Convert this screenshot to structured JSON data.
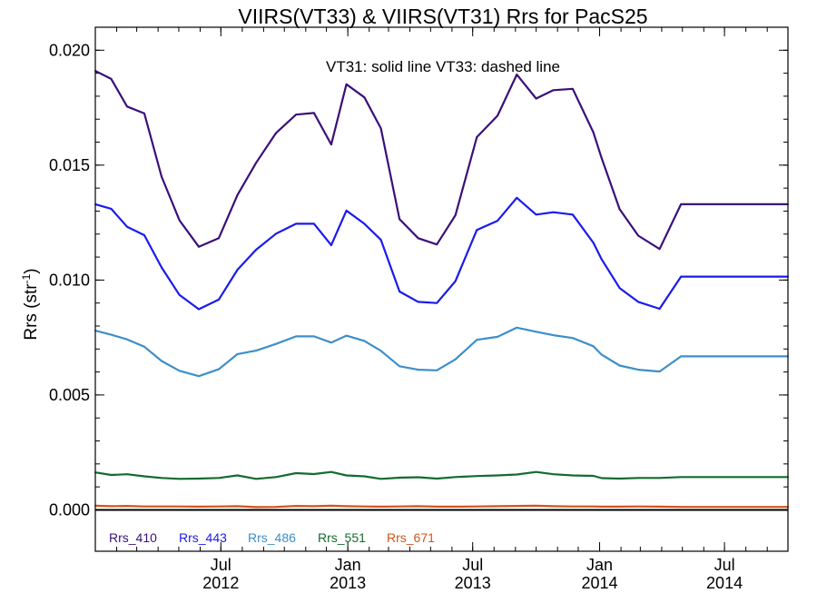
{
  "chart_data": {
    "type": "line",
    "title": "VIIRS(VT33) & VIIRS(VT31)  Rrs for PacS25",
    "annotation": "VT31: solid line   VT33: dashed line",
    "ylabel": "Rrs (str",
    "ylabel_sup": "-1",
    "ylabel_end": ")",
    "ylim": [
      -0.0018,
      0.021
    ],
    "xlim": [
      "2012-01-01",
      "2014-10-01"
    ],
    "yticks": [
      {
        "value": 0.0,
        "label": "0.000"
      },
      {
        "value": 0.005,
        "label": "0.005"
      },
      {
        "value": 0.01,
        "label": "0.010"
      },
      {
        "value": 0.015,
        "label": "0.015"
      },
      {
        "value": 0.02,
        "label": "0.020"
      }
    ],
    "xticks": [
      {
        "date": "2012-07-01",
        "label1": "Jul",
        "label2": "2012"
      },
      {
        "date": "2013-01-01",
        "label1": "Jan",
        "label2": "2013"
      },
      {
        "date": "2013-07-01",
        "label1": "Jul",
        "label2": "2013"
      },
      {
        "date": "2014-01-01",
        "label1": "Jan",
        "label2": "2014"
      },
      {
        "date": "2014-07-01",
        "label1": "Jul",
        "label2": "2014"
      }
    ],
    "x": [
      "2012-01-01",
      "2012-01-24",
      "2012-02-16",
      "2012-03-12",
      "2012-04-06",
      "2012-05-02",
      "2012-05-30",
      "2012-06-28",
      "2012-07-25",
      "2012-08-21",
      "2012-09-19",
      "2012-10-18",
      "2012-11-13",
      "2012-12-08",
      "2012-12-30",
      "2013-01-25",
      "2013-02-18",
      "2013-03-17",
      "2013-04-13",
      "2013-05-10",
      "2013-06-06",
      "2013-07-07",
      "2013-08-06",
      "2013-09-03",
      "2013-10-01",
      "2013-10-26",
      "2013-11-23",
      "2013-12-23",
      "2014-01-04",
      "2014-01-30",
      "2014-02-26",
      "2014-03-29",
      "2014-04-29",
      "2014-05-29",
      "2014-06-26",
      "2014-07-22",
      "2014-08-18",
      "2014-09-13",
      "2014-10-01"
    ],
    "series": [
      {
        "name": "Rrs_410",
        "color": "#3b0f7a",
        "values": [
          0.0191,
          0.01875,
          0.01755,
          0.01725,
          0.0145,
          0.0126,
          0.01145,
          0.01182,
          0.0137,
          0.0151,
          0.0164,
          0.0172,
          0.01727,
          0.0159,
          0.01852,
          0.01795,
          0.0166,
          0.01265,
          0.01182,
          0.01155,
          0.01282,
          0.01622,
          0.01715,
          0.01894,
          0.0179,
          0.01826,
          0.01832,
          0.01642,
          0.0153,
          0.01308,
          0.01193,
          0.01135,
          0.0133,
          0.0133,
          0.0133,
          0.0133,
          0.0133,
          0.0133,
          0.0133
        ]
      },
      {
        "name": "Rrs_443",
        "color": "#1a1aee",
        "values": [
          0.0133,
          0.0131,
          0.01232,
          0.01195,
          0.01055,
          0.00935,
          0.00873,
          0.00915,
          0.01045,
          0.01132,
          0.01202,
          0.01245,
          0.01245,
          0.01152,
          0.01302,
          0.01245,
          0.01175,
          0.0095,
          0.00905,
          0.009,
          0.00995,
          0.01218,
          0.01258,
          0.01358,
          0.01285,
          0.01295,
          0.01285,
          0.01162,
          0.0109,
          0.00965,
          0.00905,
          0.00875,
          0.01015,
          0.01015,
          0.01015,
          0.01015,
          0.01015,
          0.01015,
          0.01015
        ]
      },
      {
        "name": "Rrs_486",
        "color": "#3d8fc9",
        "values": [
          0.0078,
          0.00762,
          0.00742,
          0.0071,
          0.00648,
          0.00605,
          0.00582,
          0.00612,
          0.00678,
          0.00693,
          0.00722,
          0.00755,
          0.00755,
          0.00728,
          0.00758,
          0.00735,
          0.00692,
          0.00625,
          0.0061,
          0.00607,
          0.00655,
          0.0074,
          0.00753,
          0.00793,
          0.00775,
          0.0076,
          0.00748,
          0.00712,
          0.00675,
          0.00628,
          0.0061,
          0.00602,
          0.00668,
          0.00668,
          0.00668,
          0.00668,
          0.00668,
          0.00668,
          0.00668
        ]
      },
      {
        "name": "Rrs_551",
        "color": "#136b2e",
        "values": [
          0.00163,
          0.00152,
          0.00155,
          0.00146,
          0.00139,
          0.00135,
          0.00136,
          0.00139,
          0.0015,
          0.00135,
          0.00143,
          0.0016,
          0.00156,
          0.00165,
          0.0015,
          0.00146,
          0.00135,
          0.0014,
          0.00142,
          0.00136,
          0.00143,
          0.00147,
          0.0015,
          0.00154,
          0.00165,
          0.00155,
          0.0015,
          0.00148,
          0.00138,
          0.00136,
          0.00139,
          0.00139,
          0.00143,
          0.00143,
          0.00143,
          0.00143,
          0.00143,
          0.00143,
          0.00143
        ]
      },
      {
        "name": "Rrs_671",
        "color": "#d2541a",
        "values": [
          0.00018,
          0.00016,
          0.00017,
          0.00015,
          0.00015,
          0.00015,
          0.00014,
          0.00015,
          0.00016,
          0.00012,
          0.00013,
          0.00017,
          0.00016,
          0.00018,
          0.00016,
          0.00015,
          0.00014,
          0.00015,
          0.00016,
          0.00014,
          0.00014,
          0.00015,
          0.00016,
          0.00017,
          0.00018,
          0.00016,
          0.00015,
          0.00015,
          0.00014,
          0.00014,
          0.00015,
          0.00014,
          0.00013,
          0.00013,
          0.00013,
          0.00013,
          0.00013,
          0.00013,
          0.00013
        ]
      }
    ],
    "zero_line": true,
    "grid": false
  }
}
